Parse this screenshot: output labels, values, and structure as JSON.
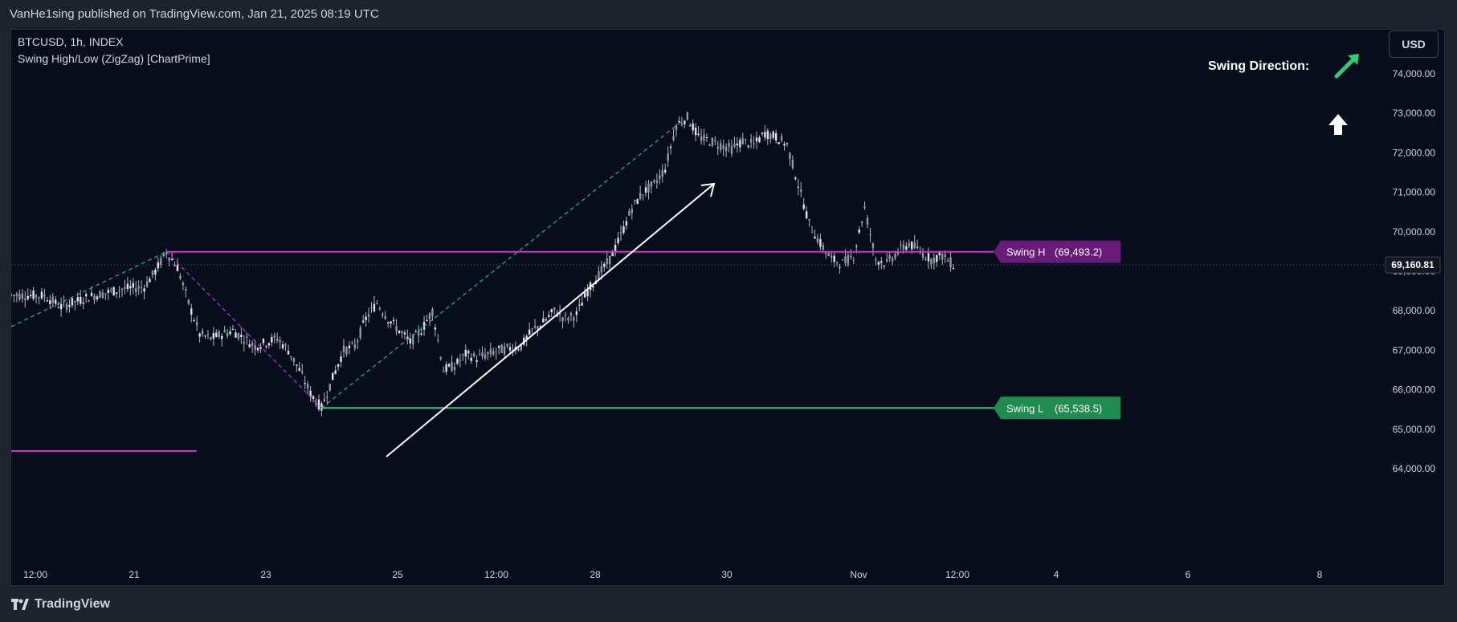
{
  "header": {
    "published": "VanHe1sing published on TradingView.com, Jan 21, 2025 08:19 UTC"
  },
  "legend": {
    "symbol": "BTCUSD, 1h, INDEX",
    "indicator": "Swing High/Low (ZigZag) [ChartPrime]"
  },
  "toolbar": {
    "currency": "USD"
  },
  "swing_direction": {
    "label": "Swing Direction:"
  },
  "price_axis": {
    "ticks": [
      "74,000.00",
      "73,000.00",
      "72,000.00",
      "71,000.00",
      "70,000.00",
      "69,000.00",
      "68,000.00",
      "67,000.00",
      "66,000.00",
      "65,000.00",
      "64,000.00"
    ],
    "last_price": "69,160.81"
  },
  "time_axis": {
    "ticks": [
      "12:00",
      "21",
      "23",
      "25",
      "12:00",
      "28",
      "30",
      "Nov",
      "12:00",
      "4",
      "6",
      "8"
    ]
  },
  "swing_labels": {
    "high": {
      "name": "Swing H",
      "value": "(69,493.2)"
    },
    "low": {
      "name": "Swing L",
      "value": "(65,538.5)"
    }
  },
  "footer": {
    "brand": "TradingView"
  },
  "colors": {
    "background": "#070d1a",
    "candle": "#b2b5be",
    "swing_high": "#cc33cc",
    "swing_low": "#2ecc71",
    "swing_high_label": "#6a1b7a",
    "swing_low_label": "#1e8c4e",
    "zigzag_up": "#26a69a",
    "zigzag_down": "#b030e0",
    "arrow": "#ffffff",
    "direction_arrow": "#2ecc71"
  },
  "chart_data": {
    "type": "candlestick",
    "title": "BTCUSD, 1h, INDEX",
    "ylim": [
      63400,
      75200
    ],
    "price_ticks": [
      74000,
      73000,
      72000,
      71000,
      70000,
      69000,
      68000,
      67000,
      66000,
      65000,
      64000
    ],
    "x_ticks": [
      "12:00",
      "21",
      "23",
      "25",
      "12:00",
      "28",
      "30",
      "Nov",
      "12:00",
      "4",
      "6",
      "8"
    ],
    "price_path": [
      [
        0,
        68400
      ],
      [
        6,
        68380
      ],
      [
        9,
        68100
      ],
      [
        14,
        68350
      ],
      [
        20,
        68550
      ],
      [
        24,
        68600
      ],
      [
        26,
        69000
      ],
      [
        28,
        69490
      ],
      [
        30,
        69100
      ],
      [
        32,
        68200
      ],
      [
        34,
        67400
      ],
      [
        36,
        67300
      ],
      [
        40,
        67500
      ],
      [
        44,
        67100
      ],
      [
        48,
        67300
      ],
      [
        50,
        67000
      ],
      [
        52,
        66500
      ],
      [
        54,
        65900
      ],
      [
        56,
        65540
      ],
      [
        58,
        66300
      ],
      [
        60,
        67000
      ],
      [
        62,
        67100
      ],
      [
        64,
        67800
      ],
      [
        66,
        68200
      ],
      [
        68,
        67800
      ],
      [
        70,
        67500
      ],
      [
        72,
        67200
      ],
      [
        74,
        67500
      ],
      [
        76,
        68000
      ],
      [
        78,
        66500
      ],
      [
        80,
        66600
      ],
      [
        82,
        66900
      ],
      [
        84,
        66800
      ],
      [
        88,
        67000
      ],
      [
        92,
        67100
      ],
      [
        94,
        67500
      ],
      [
        96,
        67700
      ],
      [
        98,
        68000
      ],
      [
        100,
        67800
      ],
      [
        102,
        67900
      ],
      [
        104,
        68500
      ],
      [
        106,
        68900
      ],
      [
        108,
        69300
      ],
      [
        110,
        69900
      ],
      [
        112,
        70600
      ],
      [
        114,
        71000
      ],
      [
        116,
        71200
      ],
      [
        118,
        71600
      ],
      [
        120,
        72700
      ],
      [
        122,
        72900
      ],
      [
        124,
        72400
      ],
      [
        126,
        72300
      ],
      [
        128,
        72200
      ],
      [
        130,
        72100
      ],
      [
        132,
        72300
      ],
      [
        134,
        72200
      ],
      [
        136,
        72500
      ],
      [
        138,
        72400
      ],
      [
        140,
        72200
      ],
      [
        142,
        71200
      ],
      [
        144,
        70200
      ],
      [
        146,
        69700
      ],
      [
        148,
        69300
      ],
      [
        150,
        69200
      ],
      [
        152,
        69400
      ],
      [
        154,
        70600
      ],
      [
        156,
        69300
      ],
      [
        158,
        69200
      ],
      [
        160,
        69500
      ],
      [
        162,
        69700
      ],
      [
        164,
        69500
      ],
      [
        166,
        69300
      ],
      [
        168,
        69400
      ],
      [
        170,
        69160
      ]
    ],
    "x_range": [
      0,
      270
    ],
    "swing_high": 69493.2,
    "swing_low": 65538.5,
    "last_price": 69160.81,
    "zigzag_up_1": {
      "from": [
        0,
        67600
      ],
      "to": [
        28,
        69493.2
      ]
    },
    "zigzag_down": {
      "from": [
        28,
        69493.2
      ],
      "to": [
        56,
        65538.5
      ]
    },
    "zigzag_up_2": {
      "from": [
        56,
        65538.5
      ],
      "to": [
        121,
        72800
      ]
    },
    "swing_high_line": {
      "from_x": 28,
      "to_x": 170,
      "value": 69493.2
    },
    "swing_low_line": {
      "from_x": 56,
      "to_x": 170,
      "value": 65538.5
    },
    "old_swing_line": {
      "from_x": 0,
      "to_x": 33,
      "value": 64450
    },
    "trend_arrow": {
      "from": [
        68,
        65600
      ],
      "to": [
        126,
        71550
      ]
    },
    "direction": "up"
  }
}
